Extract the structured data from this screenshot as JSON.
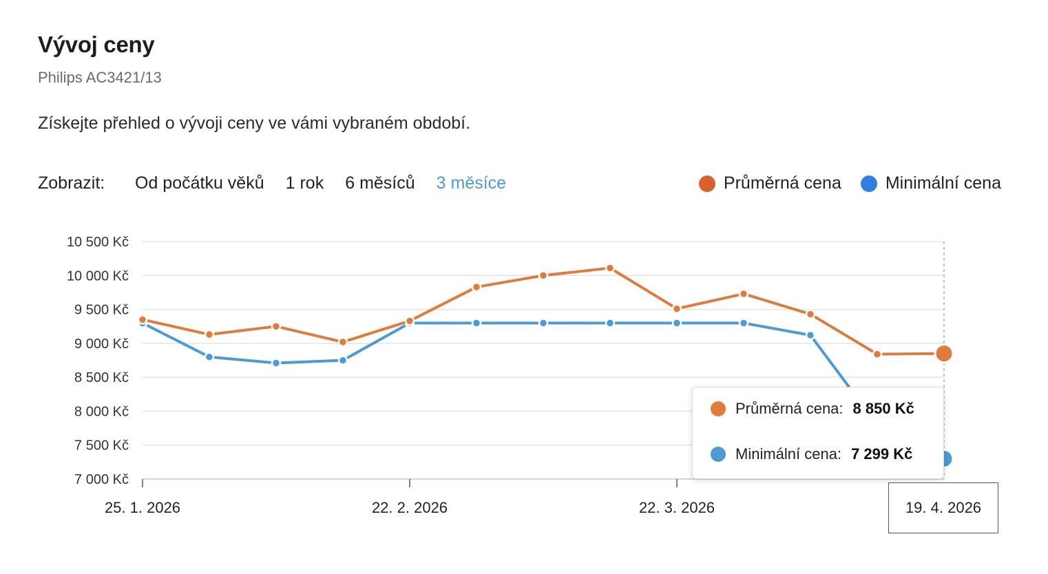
{
  "header": {
    "title": "Vývoj ceny",
    "subtitle": "Philips AC3421/13",
    "description": "Získejte přehled o vývoji ceny ve vámi vybraném období."
  },
  "controls": {
    "label": "Zobrazit:",
    "ranges": [
      "Od počátku věků",
      "1 rok",
      "6 měsíců",
      "3 měsíce"
    ],
    "active_range": "3 měsíce"
  },
  "colors": {
    "avg": "#e07b39",
    "min": "#4a9bd6",
    "avg_legend": "#d9622b",
    "min_legend": "#2e7fe0"
  },
  "chart_data": {
    "type": "line",
    "title": "",
    "xlabel": "",
    "ylabel": "",
    "x": [
      "2026-01-25",
      "2026-02-01",
      "2026-02-08",
      "2026-02-15",
      "2026-02-22",
      "2026-03-01",
      "2026-03-08",
      "2026-03-15",
      "2026-03-22",
      "2026-03-29",
      "2026-04-05",
      "2026-04-12",
      "2026-04-19"
    ],
    "xticks": [
      "25. 1. 2026",
      "22. 2. 2026",
      "22. 3. 2026",
      "19. 4. 2026"
    ],
    "ylim": [
      7000,
      10500
    ],
    "yticks": [
      10500,
      10000,
      9500,
      9000,
      8500,
      8000,
      7500,
      7000
    ],
    "ytick_labels": [
      "10 500 Kč",
      "10 000 Kč",
      "9 500 Kč",
      "9 000 Kč",
      "8 500 Kč",
      "8 000 Kč",
      "7 500 Kč",
      "7 000 Kč"
    ],
    "grid": true,
    "legend": "top-right",
    "series": [
      {
        "name": "Průměrná cena",
        "values": [
          9350,
          9130,
          9250,
          9020,
          9330,
          9830,
          10000,
          10110,
          9510,
          9730,
          9430,
          8840,
          8850
        ]
      },
      {
        "name": "Minimální cena",
        "values": [
          9299,
          8800,
          8710,
          8750,
          9299,
          9299,
          9299,
          9299,
          9299,
          9299,
          9120,
          7800,
          7299
        ]
      }
    ]
  },
  "tooltip": {
    "date": "19. 4. 2026",
    "avg_label": "Průměrná cena:",
    "avg_value": "8 850 Kč",
    "min_label": "Minimální cena:",
    "min_value": "7 299 Kč"
  }
}
